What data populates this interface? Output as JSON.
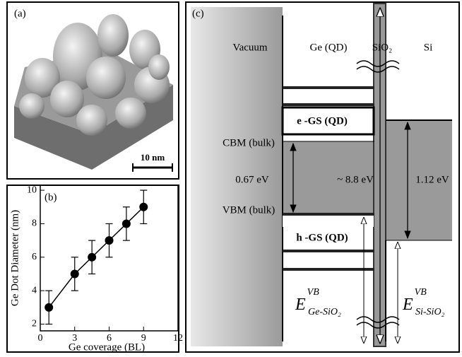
{
  "afm_panel": {
    "label": "(a)",
    "scale_bar": "10 nm"
  },
  "chart_data": {
    "type": "scatter",
    "panel_label": "(b)",
    "x_label": "Ge coverage (BL)",
    "y_label": "Ge Dot Diameter (nm)",
    "x": [
      0.75,
      3,
      4.5,
      6,
      7.5,
      9
    ],
    "series": [
      {
        "color": "#000000",
        "values": [
          3,
          5,
          6,
          7,
          8,
          9
        ],
        "errors": [
          1,
          1,
          1,
          1,
          1,
          1
        ]
      }
    ],
    "connect": true,
    "xlim": [
      0,
      12
    ],
    "xticks": [
      0,
      3,
      6,
      9,
      12
    ],
    "ylim": [
      1.6,
      10.3
    ],
    "yticks": [
      2,
      4,
      6,
      8,
      10
    ]
  },
  "band_diagram": {
    "label": "(c)",
    "regions": {
      "vacuum": "Vacuum",
      "ge": "Ge (QD)",
      "oxide": "SiO₂",
      "si": "Si"
    },
    "levels": {
      "electron_ground_state": "e -GS (QD)",
      "hole_ground_state": "h -GS (QD)",
      "cbm": "CBM (bulk)",
      "vbm": "VBM (bulk)"
    },
    "gaps": {
      "ge": "0.67 eV",
      "oxide": "~ 8.8 eV",
      "si": "1.12 eV"
    },
    "offsets": [
      {
        "symbol": "E",
        "superscript": "VB",
        "subscript": "Ge-SiO₂"
      },
      {
        "symbol": "E",
        "superscript": "VB",
        "subscript": "Si-SiO₂"
      }
    ]
  }
}
